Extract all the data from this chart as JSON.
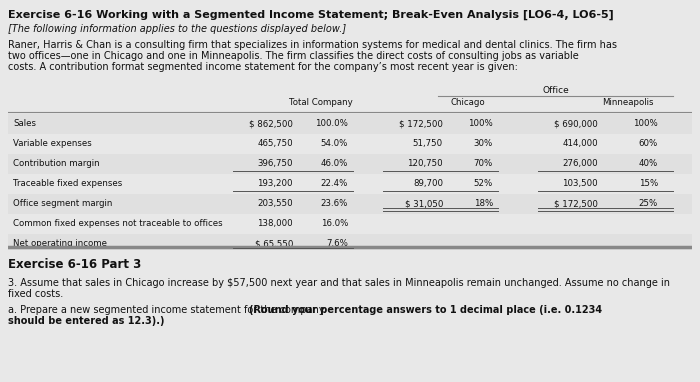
{
  "title": "Exercise 6-16 Working with a Segmented Income Statement; Break-Even Analysis [LO6-4, LO6-5]",
  "subtitle": "[The following information applies to the questions displayed below.]",
  "body_line1": "Raner, Harris & Chan is a consulting firm that specializes in information systems for medical and dental clinics. The firm has",
  "body_line2": "two offices—one in Chicago and one in Minneapolis. The firm classifies the direct costs of consulting jobs as variable",
  "body_line3": "costs. A contribution format segmented income statement for the company’s most recent year is given:",
  "table_header_office": "Office",
  "table_col1": "Total Company",
  "table_col2": "Chicago",
  "table_col3": "Minneapolis",
  "rows": [
    {
      "label": "Sales",
      "tc_val": "$ 862,500",
      "tc_pct": "100.0%",
      "ch_val": "$ 172,500",
      "ch_pct": "100%",
      "mn_val": "$ 690,000",
      "mn_pct": "100%",
      "ul_tc": false,
      "ul_ch": false,
      "ul_mn": false,
      "dul_tc": false,
      "dul_ch": false,
      "dul_mn": false
    },
    {
      "label": "Variable expenses",
      "tc_val": "465,750",
      "tc_pct": "54.0%",
      "ch_val": "51,750",
      "ch_pct": "30%",
      "mn_val": "414,000",
      "mn_pct": "60%",
      "ul_tc": false,
      "ul_ch": false,
      "ul_mn": false,
      "dul_tc": false,
      "dul_ch": false,
      "dul_mn": false
    },
    {
      "label": "Contribution margin",
      "tc_val": "396,750",
      "tc_pct": "46.0%",
      "ch_val": "120,750",
      "ch_pct": "70%",
      "mn_val": "276,000",
      "mn_pct": "40%",
      "ul_tc": true,
      "ul_ch": true,
      "ul_mn": true,
      "dul_tc": false,
      "dul_ch": false,
      "dul_mn": false
    },
    {
      "label": "Traceable fixed expenses",
      "tc_val": "193,200",
      "tc_pct": "22.4%",
      "ch_val": "89,700",
      "ch_pct": "52%",
      "mn_val": "103,500",
      "mn_pct": "15%",
      "ul_tc": true,
      "ul_ch": true,
      "ul_mn": true,
      "dul_tc": false,
      "dul_ch": false,
      "dul_mn": false
    },
    {
      "label": "Office segment margin",
      "tc_val": "203,550",
      "tc_pct": "23.6%",
      "ch_val": "$ 31,050",
      "ch_pct": "18%",
      "mn_val": "$ 172,500",
      "mn_pct": "25%",
      "ul_tc": false,
      "ul_ch": false,
      "ul_mn": false,
      "dul_tc": false,
      "dul_ch": true,
      "dul_mn": true
    },
    {
      "label": "Common fixed expenses not traceable to offices",
      "tc_val": "138,000",
      "tc_pct": "16.0%",
      "ch_val": "",
      "ch_pct": "",
      "mn_val": "",
      "mn_pct": "",
      "ul_tc": false,
      "ul_ch": false,
      "ul_mn": false,
      "dul_tc": false,
      "dul_ch": false,
      "dul_mn": false
    },
    {
      "label": "Net operating income",
      "tc_val": "$ 65,550",
      "tc_pct": "7.6%",
      "ch_val": "",
      "ch_pct": "",
      "mn_val": "",
      "mn_pct": "",
      "ul_tc": false,
      "ul_ch": false,
      "ul_mn": false,
      "dul_tc": true,
      "dul_ch": false,
      "dul_mn": false
    }
  ],
  "part3_header": "Exercise 6-16 Part 3",
  "part3_body": "3. Assume that sales in Chicago increase by $57,500 next year and that sales in Minneapolis remain unchanged. Assume no change in",
  "part3_body2": "fixed costs.",
  "part3a_normal": "a. Prepare a new segmented income statement for the company. ",
  "part3a_bold": "(Round your percentage answers to 1 decimal place (i.e. 0.1234",
  "part3a_bold2": "should be entered as 12.3).)",
  "bg_color": "#e8e8e8",
  "table_bg": "#f2f2f2",
  "text_color": "#111111",
  "row_alt_color": "#e0e0e0"
}
